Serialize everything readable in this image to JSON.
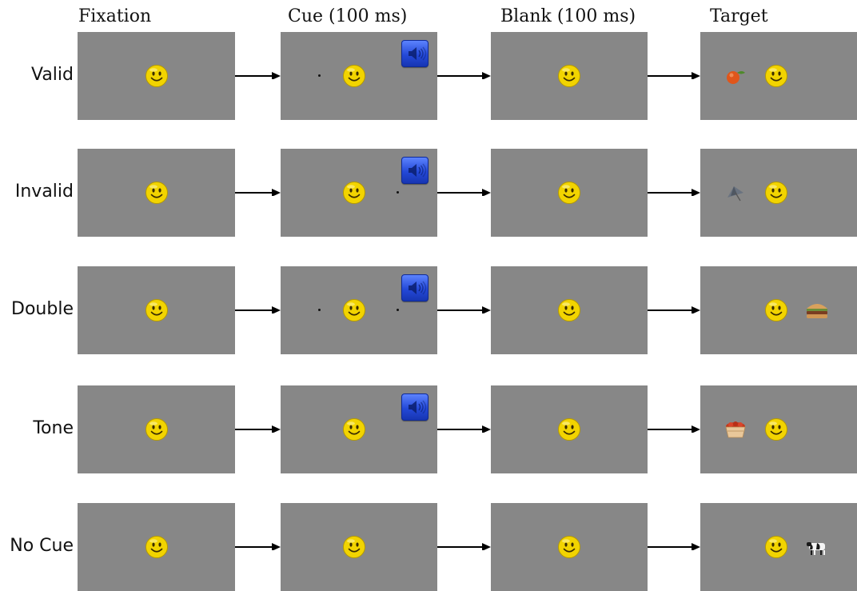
{
  "columns": {
    "fixation": "Fixation",
    "cue": "Cue (100 ms)",
    "blank": "Blank (100 ms)",
    "target": "Target"
  },
  "rows": [
    {
      "label": "Valid",
      "cue_dots": [
        "left"
      ],
      "tone": true,
      "target_item": "orange-fruit",
      "target_side": "left"
    },
    {
      "label": "Invalid",
      "cue_dots": [
        "right"
      ],
      "tone": true,
      "target_item": "umbrella",
      "target_side": "left"
    },
    {
      "label": "Double",
      "cue_dots": [
        "left",
        "right"
      ],
      "tone": true,
      "target_item": "hamburger",
      "target_side": "right"
    },
    {
      "label": "Tone",
      "cue_dots": [],
      "tone": true,
      "target_item": "fruit-basket",
      "target_side": "left"
    },
    {
      "label": "No Cue",
      "cue_dots": [],
      "tone": false,
      "target_item": "cow",
      "target_side": "right"
    }
  ],
  "icons": {
    "fixation": "smiley-face-icon",
    "tone": "speaker-icon"
  },
  "colors": {
    "panel": "#878787",
    "smiley": "#f2d400",
    "speaker": "#2449d8",
    "arrow": "#000000"
  }
}
